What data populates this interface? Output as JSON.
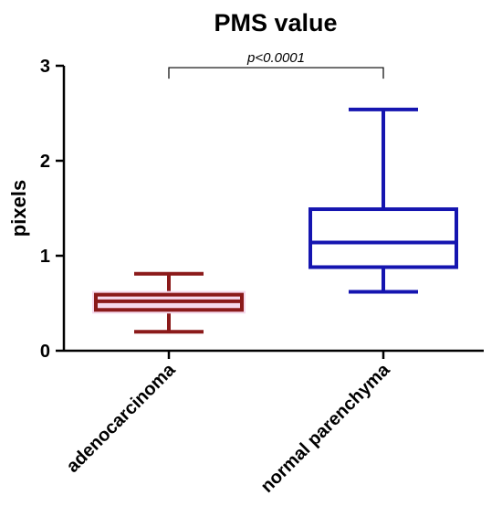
{
  "chart_data": {
    "type": "box",
    "title": "PMS value",
    "xlabel": "",
    "ylabel": "pixels",
    "ylim": [
      0,
      3
    ],
    "yticks": [
      0,
      1,
      2,
      3
    ],
    "yticklabels": [
      "0",
      "1",
      "2",
      "3"
    ],
    "categories": [
      "adenocarcinoma",
      "normal parenchyma"
    ],
    "boxes": [
      {
        "category": "adenocarcinoma",
        "min": 0.2,
        "q1": 0.43,
        "median": 0.52,
        "q3": 0.59,
        "max": 0.81,
        "color": "#8b1a1a",
        "fill": "#f6d9ec"
      },
      {
        "category": "normal parenchyma",
        "min": 0.62,
        "q1": 0.88,
        "median": 1.14,
        "q3": 1.49,
        "max": 2.54,
        "color": "#1515b0",
        "fill": "#ffffff"
      }
    ],
    "annotation": {
      "text": "p<0.0001",
      "between": [
        "adenocarcinoma",
        "normal parenchyma"
      ],
      "y": 2.98
    },
    "grid": false,
    "legend": "none"
  }
}
